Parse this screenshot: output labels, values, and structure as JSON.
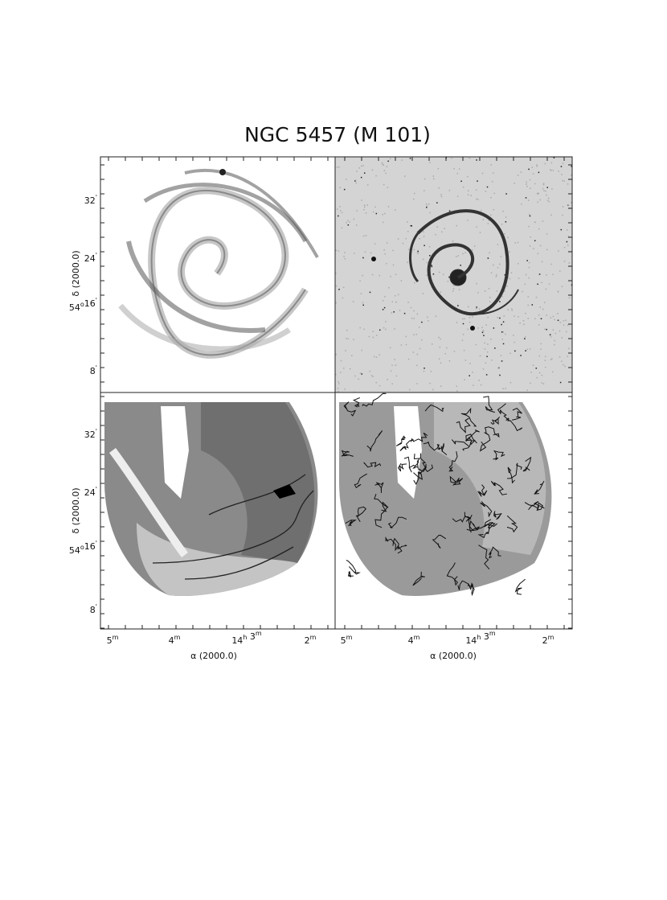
{
  "title": "NGC 5457 (M 101)",
  "y_axis": {
    "label": "δ (2000.0)",
    "ticks": [
      [
        [
          "32",
          "'"
        ]
      ],
      [
        [
          "24",
          "'"
        ]
      ],
      [
        [
          "54",
          "o"
        ],
        [
          "16",
          "'"
        ]
      ],
      [
        [
          "8",
          "'"
        ]
      ]
    ]
  },
  "x_axis": {
    "label": "α (2000.0)",
    "ticks": [
      [
        [
          "5",
          "m"
        ]
      ],
      [
        [
          "4",
          "m"
        ]
      ],
      [
        [
          "14",
          "h"
        ],
        [
          " 3",
          "m"
        ]
      ],
      [
        [
          "2",
          "m"
        ]
      ]
    ]
  }
}
